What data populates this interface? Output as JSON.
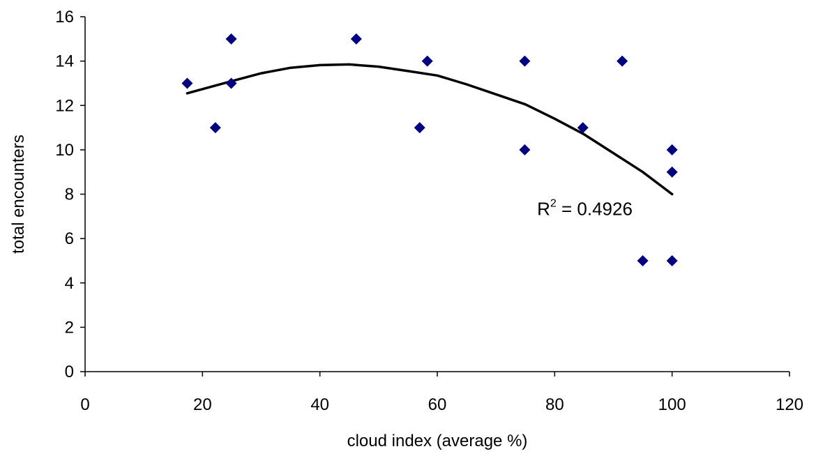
{
  "chart_data": {
    "type": "scatter",
    "xlabel": "cloud index (average %)",
    "ylabel": "total encounters",
    "xlim": [
      0,
      120
    ],
    "ylim": [
      0,
      16
    ],
    "xticks": [
      0,
      20,
      40,
      60,
      80,
      100,
      120
    ],
    "yticks": [
      0,
      2,
      4,
      6,
      8,
      10,
      12,
      14,
      16
    ],
    "grid": false,
    "legend": "none",
    "marker": "diamond",
    "marker_color": "#000080",
    "points": [
      {
        "x": 17.4,
        "y": 13
      },
      {
        "x": 22.2,
        "y": 11
      },
      {
        "x": 24.9,
        "y": 15
      },
      {
        "x": 24.9,
        "y": 13
      },
      {
        "x": 46.2,
        "y": 15
      },
      {
        "x": 57.0,
        "y": 11
      },
      {
        "x": 58.3,
        "y": 14
      },
      {
        "x": 74.9,
        "y": 14
      },
      {
        "x": 74.9,
        "y": 10
      },
      {
        "x": 84.8,
        "y": 11
      },
      {
        "x": 91.5,
        "y": 14
      },
      {
        "x": 95.0,
        "y": 5
      },
      {
        "x": 100,
        "y": 10
      },
      {
        "x": 100,
        "y": 9
      },
      {
        "x": 100,
        "y": 5
      }
    ],
    "trendline": {
      "type": "polynomial",
      "color": "#000000",
      "points": [
        {
          "x": 17.4,
          "y": 12.55
        },
        {
          "x": 25,
          "y": 13.1
        },
        {
          "x": 30,
          "y": 13.45
        },
        {
          "x": 35,
          "y": 13.7
        },
        {
          "x": 40,
          "y": 13.82
        },
        {
          "x": 45,
          "y": 13.85
        },
        {
          "x": 50,
          "y": 13.75
        },
        {
          "x": 55,
          "y": 13.55
        },
        {
          "x": 60,
          "y": 13.35
        },
        {
          "x": 65,
          "y": 12.95
        },
        {
          "x": 70,
          "y": 12.5
        },
        {
          "x": 75,
          "y": 12.05
        },
        {
          "x": 80,
          "y": 11.4
        },
        {
          "x": 85,
          "y": 10.7
        },
        {
          "x": 90,
          "y": 9.85
        },
        {
          "x": 95,
          "y": 9.0
        },
        {
          "x": 100,
          "y": 8.0
        }
      ]
    },
    "annotation": {
      "base": "R",
      "superscript": "2",
      "rest": " = 0.4926",
      "at": {
        "x": 77,
        "y": 7.05
      }
    }
  }
}
